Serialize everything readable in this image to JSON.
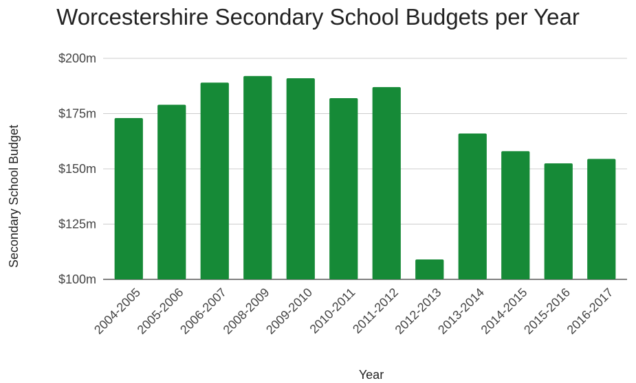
{
  "chart_data": {
    "type": "bar",
    "title": "Worcestershire Secondary School Budgets per Year",
    "xlabel": "Year",
    "ylabel": "Secondary School Budget",
    "categories": [
      "2004-2005",
      "2005-2006",
      "2006-2007",
      "2008-2009",
      "2009-2010",
      "2010-2011",
      "2011-2012",
      "2012-2013",
      "2013-2014",
      "2014-2015",
      "2015-2016",
      "2016-2017"
    ],
    "values": [
      173,
      179,
      189,
      192,
      191,
      182,
      187,
      109,
      166,
      158,
      152.5,
      154.5
    ],
    "ylim": [
      100,
      200
    ],
    "yticks": [
      100,
      125,
      150,
      175,
      200
    ],
    "ytick_labels": [
      "$100m",
      "$125m",
      "$150m",
      "$175m",
      "$200m"
    ],
    "bar_color": "#168a37",
    "grid": true,
    "legend": "none"
  }
}
